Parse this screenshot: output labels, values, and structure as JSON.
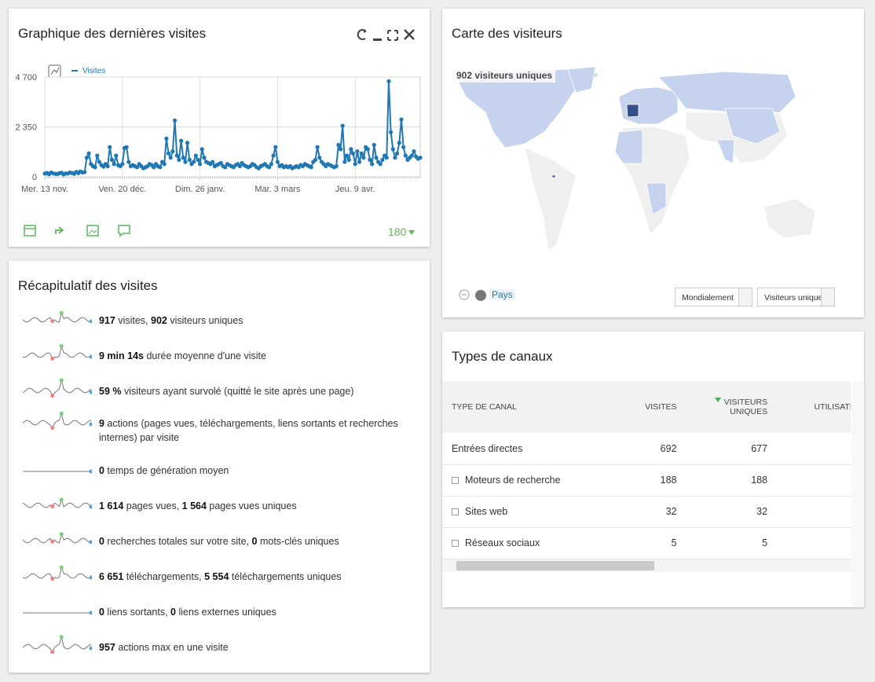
{
  "visits_graph": {
    "title": "Graphique des dernières visites",
    "chart": {
      "type": "line",
      "categories": [
        "Mer. 13 nov.",
        null,
        null,
        null,
        null,
        null,
        null,
        null,
        null,
        null,
        null,
        null,
        null,
        null,
        null,
        null,
        null,
        null,
        null,
        null,
        null,
        null,
        null,
        null,
        null,
        null,
        null,
        null,
        null,
        null,
        null,
        null,
        null,
        null,
        null,
        null,
        null,
        "Ven. 20 déc.",
        null,
        null,
        null,
        null,
        null,
        null,
        null,
        null,
        null,
        null,
        null,
        null,
        null,
        null,
        null,
        null,
        null,
        null,
        null,
        null,
        null,
        null,
        null,
        null,
        null,
        null,
        null,
        null,
        null,
        null,
        null,
        null,
        null,
        null,
        null,
        null,
        "Dim. 26 janv.",
        null,
        null,
        null,
        null,
        null,
        null,
        null,
        null,
        null,
        null,
        null,
        null,
        null,
        null,
        null,
        null,
        null,
        null,
        null,
        null,
        null,
        null,
        null,
        null,
        null,
        null,
        null,
        null,
        null,
        null,
        null,
        null,
        null,
        null,
        null,
        null,
        "Mar. 3 mars",
        null,
        null,
        null,
        null,
        null,
        null,
        null,
        null,
        null,
        null,
        null,
        null,
        null,
        null,
        null,
        null,
        null,
        null,
        null,
        null,
        null,
        null,
        null,
        null,
        null,
        null,
        null,
        null,
        null,
        null,
        null,
        null,
        null,
        null,
        null,
        null,
        "Jeu. 9 avr.",
        null,
        null,
        null,
        null,
        null,
        null,
        null,
        null,
        null,
        null,
        null,
        null,
        null,
        null,
        null,
        null,
        null,
        null,
        null,
        null,
        null,
        null,
        null,
        null,
        null,
        null,
        null,
        null,
        null,
        null,
        null
      ],
      "series": [
        {
          "name": "Visites",
          "color": "#1f78b4",
          "values": [
            150,
            180,
            120,
            200,
            160,
            140,
            130,
            170,
            190,
            110,
            160,
            150,
            200,
            180,
            140,
            230,
            170,
            250,
            200,
            220,
            900,
            1100,
            600,
            500,
            450,
            1000,
            700,
            550,
            480,
            600,
            500,
            1400,
            800,
            600,
            1000,
            550,
            500,
            600,
            1350,
            1400,
            700,
            500,
            550,
            500,
            450,
            600,
            500,
            400,
            450,
            500,
            600,
            550,
            450,
            600,
            500,
            450,
            700,
            600,
            1800,
            1100,
            900,
            1200,
            2650,
            1000,
            800,
            1700,
            900,
            700,
            1600,
            800,
            600,
            700,
            1000,
            800,
            600,
            1300,
            900,
            700,
            650,
            600,
            700,
            500,
            550,
            600,
            650,
            500,
            450,
            600,
            550,
            500,
            450,
            550,
            600,
            500,
            650,
            550,
            500,
            450,
            500,
            600,
            550,
            450,
            400,
            500,
            550,
            600,
            500,
            450,
            600,
            1000,
            1400,
            700,
            500,
            550,
            450,
            500,
            450,
            500,
            400,
            450,
            500,
            450,
            550,
            500,
            600,
            550,
            500,
            450,
            700,
            800,
            1400,
            900,
            700,
            600,
            500,
            600,
            550,
            500,
            450,
            500,
            1500,
            1300,
            2400,
            700,
            1000,
            800,
            1300,
            1100,
            600,
            1200,
            700,
            1100,
            900,
            1400,
            1300,
            800,
            600,
            1500,
            900,
            700,
            600,
            800,
            1000,
            900,
            4500,
            2100,
            1300,
            900,
            1100,
            1600,
            2700,
            1400,
            1000,
            800,
            900,
            1000,
            1200,
            950,
            850,
            900
          ]
        }
      ],
      "ylim": [
        0,
        4700
      ],
      "yticks": [
        0,
        {
          "value": 2350,
          "label": "2 350"
        },
        {
          "value": 4700,
          "label": "4 700"
        }
      ],
      "grid": true
    },
    "period": "180"
  },
  "visits_overview": {
    "title": "Récapitulatif des visites",
    "items": [
      {
        "parts": [
          "917",
          " visites, ",
          "902",
          " visiteurs uniques"
        ]
      },
      {
        "parts": [
          "9 min 14s",
          " durée moyenne d'une visite"
        ]
      },
      {
        "parts": [
          "59 %",
          " visiteurs ayant survolé (quitté le site après une page)"
        ]
      },
      {
        "parts": [
          "9",
          " actions (pages vues, téléchargements, liens sortants et recherches internes) par visite"
        ]
      },
      {
        "parts": [
          "0",
          " temps de génération moyen"
        ]
      },
      {
        "parts": [
          "1 614",
          " pages vues, ",
          "1 564",
          " pages vues uniques"
        ]
      },
      {
        "parts": [
          "0",
          " recherches totales sur votre site, ",
          "0",
          " mots-clés uniques"
        ]
      },
      {
        "parts": [
          "6 651",
          " téléchargements, ",
          "5 554",
          " téléchargements uniques"
        ]
      },
      {
        "parts": [
          "0",
          " liens sortants, ",
          "0",
          " liens externes uniques"
        ]
      },
      {
        "parts": [
          "957",
          " actions max en une visite"
        ]
      }
    ]
  },
  "visitor_map": {
    "title": "Carte des visiteurs",
    "summary": "902 visiteurs uniques",
    "level": "Pays",
    "region_select": "Mondialement",
    "metric_select": "Visiteurs uniques"
  },
  "channel_types": {
    "title": "Types de canaux",
    "columns": [
      "TYPE DE CANAL",
      "VISITES",
      "VISITEURS UNIQUES",
      "UTILISATEURS"
    ],
    "rows": [
      [
        "Entrées directes",
        692,
        677
      ],
      [
        "Moteurs de recherche",
        188,
        188
      ],
      [
        "Sites web",
        32,
        32
      ],
      [
        "Réseaux sociaux",
        5,
        5
      ]
    ]
  }
}
